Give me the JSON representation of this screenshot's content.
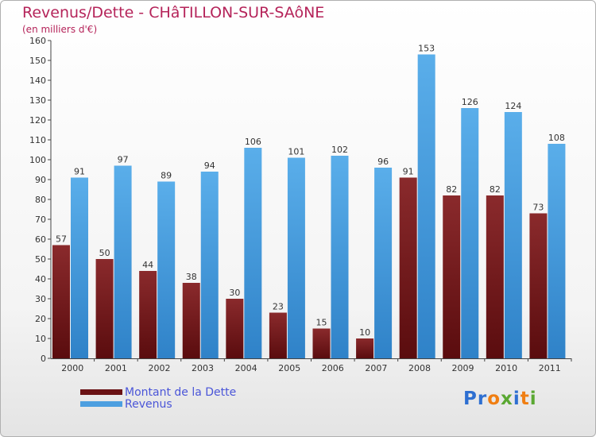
{
  "title": "Revenus/Dette - CHâTILLON-SUR-SAôNE",
  "subtitle": "(en milliers d'€)",
  "logo": {
    "text": "Proxiti",
    "part1": "Pr",
    "part2": "o",
    "part3": "x",
    "part4": "i",
    "part5": "t",
    "part6": "i"
  },
  "colors": {
    "dette": "#7b1f22",
    "revenus": "#4d9fe0",
    "title": "#b5245a",
    "legend_text": "#4a55d8"
  },
  "chart_data": {
    "type": "bar",
    "title": "Revenus/Dette - CHâTILLON-SUR-SAôNE",
    "ylabel": "",
    "xlabel": "",
    "ylim": [
      0,
      160
    ],
    "yticks": [
      0,
      10,
      20,
      30,
      40,
      50,
      60,
      70,
      80,
      90,
      100,
      110,
      120,
      130,
      140,
      150,
      160
    ],
    "grid": false,
    "legend_position": "bottom-left",
    "categories": [
      "2000",
      "2001",
      "2002",
      "2003",
      "2004",
      "2005",
      "2006",
      "2007",
      "2008",
      "2009",
      "2010",
      "2011"
    ],
    "series": [
      {
        "name": "Montant de la Dette",
        "values": [
          57,
          50,
          44,
          38,
          30,
          23,
          15,
          10,
          91,
          82,
          82,
          73
        ]
      },
      {
        "name": "Revenus",
        "values": [
          91,
          97,
          89,
          94,
          106,
          101,
          102,
          96,
          153,
          126,
          124,
          108
        ]
      }
    ]
  }
}
